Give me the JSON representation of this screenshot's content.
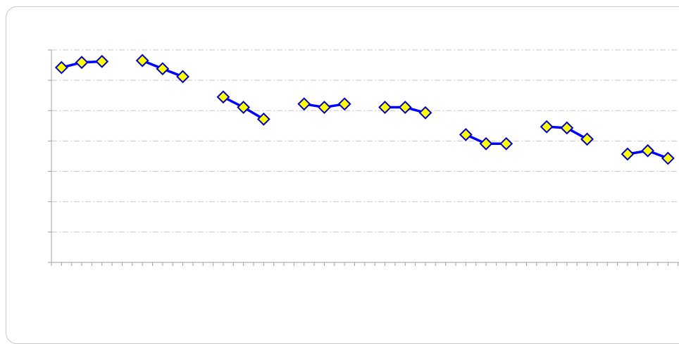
{
  "chart_data": {
    "type": "line",
    "title": "",
    "xlabel": "",
    "ylabel": "",
    "ylim": [
      0,
      7
    ],
    "grid": true,
    "legend": "none",
    "colors": {
      "line": "#0000ff",
      "marker_fill": "#ffff00",
      "marker_stroke": "#0000cc",
      "grid": "#c8c8c8",
      "axis": "#a0a0a0",
      "frame": "#c8c8c8"
    },
    "marker": "diamond",
    "series": [
      {
        "values": [
          6.42,
          6.59,
          6.62
        ]
      },
      {
        "values": [
          6.65,
          6.38,
          6.12
        ]
      },
      {
        "values": [
          5.45,
          5.11,
          4.72
        ]
      },
      {
        "values": [
          5.22,
          5.11,
          5.22
        ]
      },
      {
        "values": [
          5.11,
          5.11,
          4.93
        ]
      },
      {
        "values": [
          4.21,
          3.91,
          3.91
        ]
      },
      {
        "values": [
          4.47,
          4.43,
          4.06
        ]
      },
      {
        "values": [
          3.57,
          3.68,
          3.43
        ]
      }
    ]
  }
}
